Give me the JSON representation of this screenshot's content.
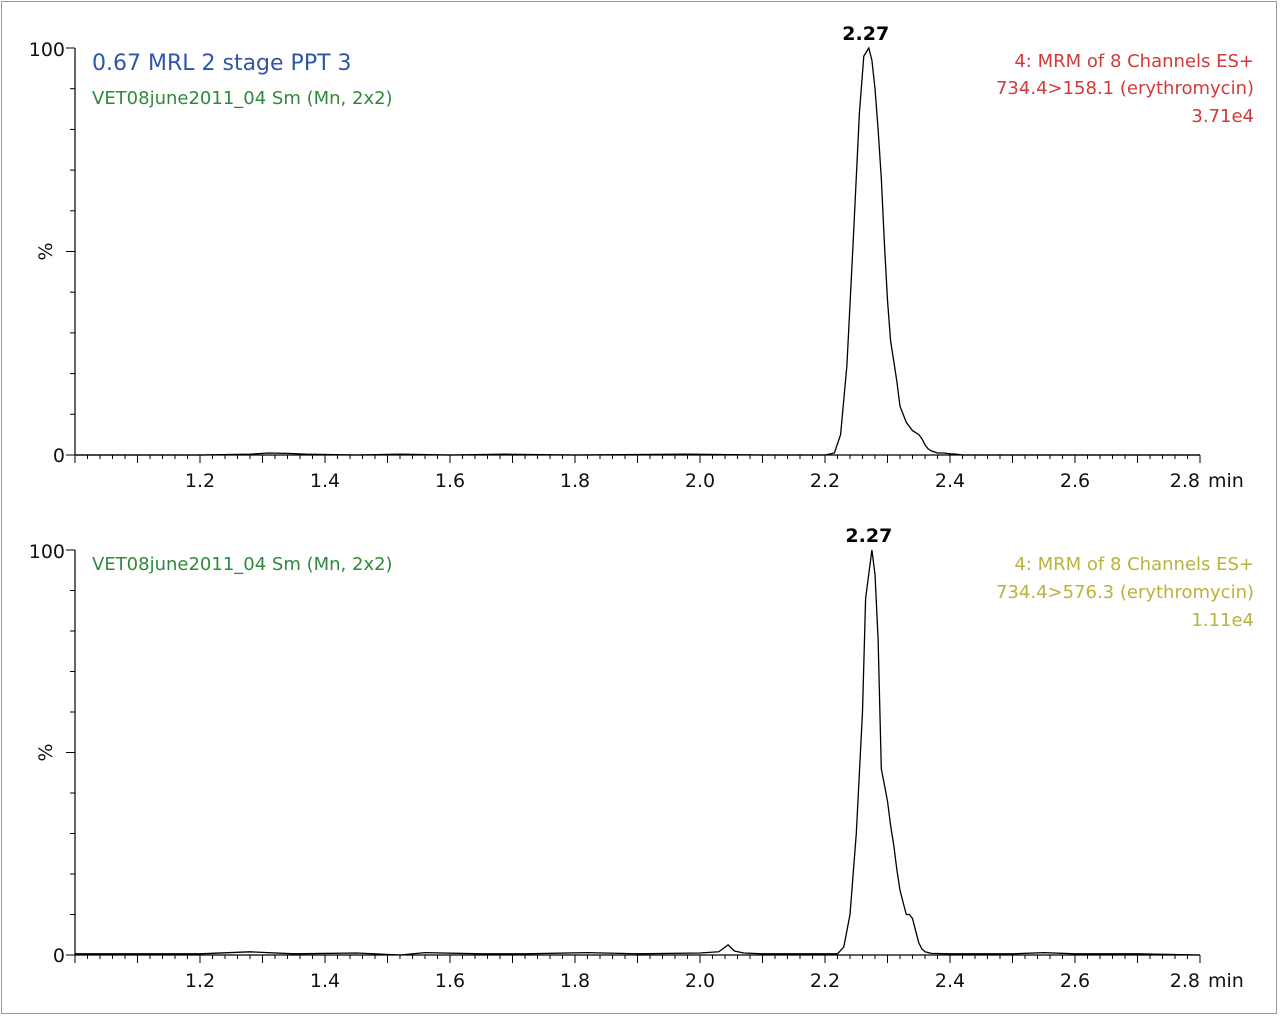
{
  "chart_data": [
    {
      "type": "line",
      "title": "0.67 MRL 2 stage PPT 3",
      "subtitle": "VET08june2011_04 Sm (Mn, 2x2)",
      "info_lines": [
        "4: MRM of 8 Channels ES+",
        "734.4>158.1 (erythromycin)",
        "3.71e4"
      ],
      "xlabel": "min",
      "ylabel": "%",
      "xlim": [
        1.0,
        2.8
      ],
      "ylim": [
        0,
        100
      ],
      "x_ticks": [
        "1.2",
        "1.4",
        "1.6",
        "1.8",
        "2.0",
        "2.2",
        "2.4",
        "2.6",
        "2.8"
      ],
      "y_ticks": [
        "0",
        "100"
      ],
      "peak_label": "2.27",
      "peak_x": 2.27,
      "series": [
        {
          "x": [
            1.0,
            1.1,
            1.2,
            1.28,
            1.31,
            1.34,
            1.37,
            1.45,
            1.52,
            1.6,
            1.69,
            1.8,
            1.98,
            2.1,
            2.2,
            2.215,
            2.225,
            2.235,
            2.245,
            2.255,
            2.262,
            2.27,
            2.275,
            2.28,
            2.285,
            2.29,
            2.295,
            2.3,
            2.305,
            2.31,
            2.315,
            2.32,
            2.33,
            2.34,
            2.35,
            2.355,
            2.36,
            2.365,
            2.37,
            2.38,
            2.39,
            2.4,
            2.41,
            2.42,
            2.45,
            2.5,
            2.6,
            2.7,
            2.8
          ],
          "y": [
            0,
            0,
            0,
            0.2,
            0.5,
            0.4,
            0.2,
            0,
            0.2,
            0,
            0.2,
            0,
            0.2,
            0,
            0,
            0.5,
            5,
            22,
            52,
            84,
            98,
            100,
            97,
            90,
            80,
            68,
            52,
            38,
            28,
            23,
            18,
            12,
            8,
            6,
            5,
            4,
            2.5,
            1.5,
            1,
            0.5,
            0.5,
            0.3,
            0.2,
            0,
            0,
            0,
            0,
            0,
            0
          ]
        }
      ]
    },
    {
      "type": "line",
      "subtitle": "VET08june2011_04 Sm (Mn, 2x2)",
      "info_lines": [
        "4: MRM of 8 Channels ES+",
        "734.4>576.3 (erythromycin)",
        "1.11e4"
      ],
      "xlabel": "min",
      "ylabel": "%",
      "xlim": [
        1.0,
        2.8
      ],
      "ylim": [
        0,
        100
      ],
      "x_ticks": [
        "1.2",
        "1.4",
        "1.6",
        "1.8",
        "2.0",
        "2.2",
        "2.4",
        "2.6",
        "2.8"
      ],
      "y_ticks": [
        "0",
        "100"
      ],
      "peak_label": "2.27",
      "peak_x": 2.275,
      "series": [
        {
          "x": [
            1.0,
            1.1,
            1.2,
            1.28,
            1.35,
            1.45,
            1.52,
            1.56,
            1.65,
            1.72,
            1.82,
            1.9,
            2.0,
            2.03,
            2.045,
            2.055,
            2.07,
            2.1,
            2.15,
            2.2,
            2.22,
            2.23,
            2.24,
            2.25,
            2.26,
            2.265,
            2.275,
            2.28,
            2.285,
            2.29,
            2.295,
            2.3,
            2.305,
            2.31,
            2.315,
            2.32,
            2.325,
            2.33,
            2.335,
            2.34,
            2.345,
            2.35,
            2.355,
            2.36,
            2.37,
            2.4,
            2.5,
            2.55,
            2.6,
            2.7,
            2.8
          ],
          "y": [
            0.3,
            0.3,
            0.3,
            0.8,
            0.3,
            0.5,
            0,
            0.6,
            0.3,
            0.3,
            0.6,
            0.3,
            0.5,
            0.8,
            2.5,
            1,
            0.5,
            0.3,
            0.3,
            0.3,
            0.3,
            2,
            10,
            30,
            60,
            88,
            100,
            94,
            78,
            46,
            42,
            38,
            32,
            27,
            21,
            16,
            13,
            10,
            10,
            9,
            6,
            3,
            1.5,
            0.8,
            0.4,
            0.3,
            0.3,
            0.6,
            0.3,
            0.3,
            0
          ]
        }
      ]
    }
  ],
  "colors": {
    "title": "#2f56a8",
    "subtitle": "#2e8a3a",
    "info_panel_1": "#d13a3a",
    "info_panel_2": "#b9b33a",
    "trace": "#000000",
    "axis": "#000000",
    "frame": "#9a9a9a"
  }
}
